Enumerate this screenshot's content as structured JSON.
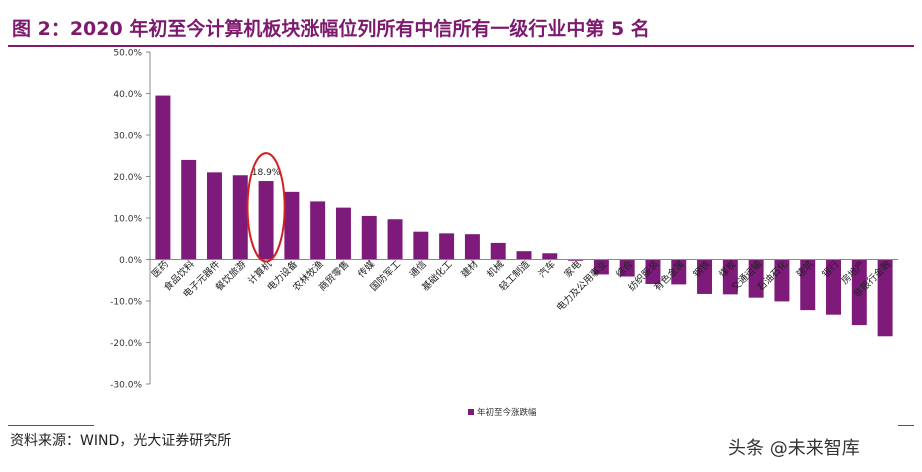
{
  "header": {
    "title": "图 2：2020 年初至今计算机板块涨幅位列所有中信所有一级行业中第 5 名"
  },
  "footer": {
    "source": "资料来源：WIND，光大证券研究所",
    "watermark": "头条 @未来智库"
  },
  "colors": {
    "bar": "#7d1a7a",
    "title": "#7d1a6e",
    "highlight": "#d42020"
  },
  "chart_data": {
    "type": "bar",
    "categories": [
      "医药",
      "食品饮料",
      "电子元器件",
      "餐饮旅游",
      "计算机",
      "电力设备",
      "农林牧渔",
      "商贸零售",
      "传媒",
      "国防军工",
      "通信",
      "基础化工",
      "建材",
      "机械",
      "轻工制造",
      "汽车",
      "家电",
      "电力及公用事业",
      "综合",
      "纺织服装",
      "有色金属",
      "钢铁",
      "煤炭",
      "交通运输",
      "石油石化",
      "建筑",
      "银行",
      "房地产",
      "非银行金融"
    ],
    "series": [
      {
        "name": "年初至今涨跌幅",
        "values": [
          39.5,
          24.0,
          21.0,
          20.3,
          18.9,
          16.3,
          14.0,
          12.5,
          10.5,
          9.7,
          6.7,
          6.3,
          6.1,
          4.0,
          2.0,
          1.5,
          -0.3,
          -3.6,
          -4.1,
          -5.9,
          -6.0,
          -8.3,
          -8.4,
          -9.2,
          -10.1,
          -12.2,
          -13.3,
          -15.8,
          -18.5
        ]
      }
    ],
    "yticks": [
      "50.0%",
      "40.0%",
      "30.0%",
      "20.0%",
      "10.0%",
      "0.0%",
      "-10.0%",
      "-20.0%",
      "-30.0%"
    ],
    "ylim": [
      -30,
      50
    ],
    "data_label": "18.9%",
    "highlight_category": "计算机",
    "legend": "年初至今涨跌幅",
    "legend_position": "bottom"
  }
}
